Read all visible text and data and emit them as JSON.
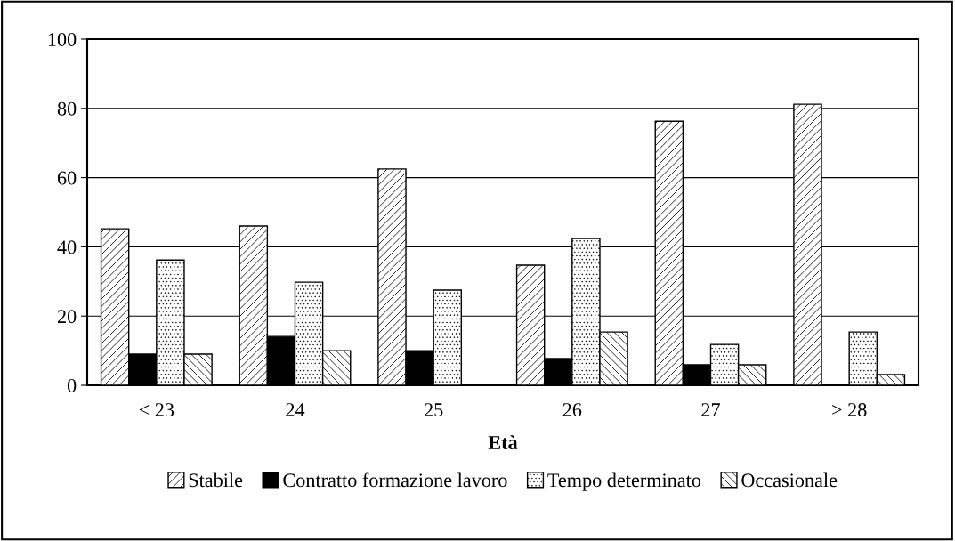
{
  "chart_data": {
    "type": "bar",
    "xlabel": "Età",
    "categories": [
      "< 23",
      "24",
      "25",
      "26",
      "27",
      "> 28"
    ],
    "series": [
      {
        "name": "Stabile",
        "color": "#000000",
        "values": [
          45.2,
          46,
          62.5,
          34.7,
          76.3,
          81.2
        ]
      },
      {
        "name": "Contratto formazione lavoro",
        "color": "#000000",
        "values": [
          9,
          14.1,
          10,
          7.7,
          5.9,
          null
        ]
      },
      {
        "name": "Tempo determinato",
        "color": "#000000",
        "values": [
          36.2,
          29.8,
          27.5,
          42.4,
          11.8,
          15.4
        ]
      },
      {
        "name": "Occasionale",
        "color": "#000000",
        "values": [
          9,
          10,
          null,
          15.4,
          5.9,
          3.1
        ]
      }
    ],
    "ylim": [
      0,
      100
    ],
    "yticks": [
      0,
      20,
      40,
      60,
      80,
      100
    ],
    "grid": "y",
    "legend": "bottom"
  }
}
